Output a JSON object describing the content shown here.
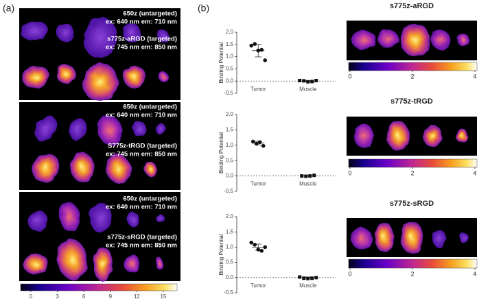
{
  "panel_labels": [
    "(a)",
    "(b)"
  ],
  "image_panels": [
    {
      "labels": [
        "650z (untargeted)",
        "ex: 640 nm  em: 710 nm",
        "s775z-aRGD (targeted)",
        "ex: 745 nm  em: 850 nm"
      ]
    },
    {
      "labels": [
        "650z (untargeted)",
        "ex: 640 nm  em: 710 nm",
        "S775z-tRGD (targeted)",
        "ex: 745 nm  em: 850 nm"
      ]
    },
    {
      "labels": [
        "650z (untargeted)",
        "ex: 640 nm  em: 710 nm",
        "s775z-sRGD (targeted)",
        "ex: 745 nm  em: 850 nm"
      ]
    }
  ],
  "colorbar": {
    "lim": [
      0,
      15
    ],
    "ticks": [
      0,
      3,
      6,
      9,
      12,
      15
    ]
  },
  "chart_data": [
    {
      "type": "dot",
      "title": "s775z-aRGD",
      "ylabel": "Binding Potential",
      "categories": [
        "Tumor",
        "Muscle"
      ],
      "markers": [
        "circle",
        "square"
      ],
      "color": "#111111",
      "points": [
        [
          1.45,
          1.52,
          1.25,
          1.28,
          0.85
        ],
        [
          0.02,
          0.01,
          -0.03,
          -0.02,
          0.02
        ]
      ],
      "mean": [
        1.25,
        0.0
      ],
      "sd": [
        0.26,
        0.02
      ],
      "ylim": [
        -0.5,
        2.0
      ],
      "yticks": [
        {
          "value": -0.5,
          "label": "-0.5"
        },
        {
          "value": 0,
          "label": "0.0"
        },
        {
          "value": 0.5,
          "label": "0.5"
        },
        {
          "value": 1,
          "label": "1.0"
        },
        {
          "value": 1.5,
          "label": "1.5"
        },
        {
          "value": 2,
          "label": "2.0"
        }
      ],
      "colorbar": {
        "lim": [
          0,
          4
        ],
        "ticks": [
          0,
          2,
          4
        ]
      }
    },
    {
      "type": "dot",
      "title": "s775z-tRGD",
      "ylabel": "Binding Potential",
      "categories": [
        "Tumor",
        "Muscle"
      ],
      "markers": [
        "circle",
        "square"
      ],
      "color": "#111111",
      "points": [
        [
          1.12,
          1.05,
          1.1,
          0.98
        ],
        [
          0.0,
          -0.01,
          0.0,
          0.02
        ]
      ],
      "mean": [
        1.07,
        0.0
      ],
      "sd": [
        0.06,
        0.01
      ],
      "ylim": [
        -0.5,
        2.0
      ],
      "yticks": [
        {
          "value": -0.5,
          "label": "-0.5"
        },
        {
          "value": 0,
          "label": "0.0"
        },
        {
          "value": 0.5,
          "label": "0.5"
        },
        {
          "value": 1,
          "label": "1.0"
        },
        {
          "value": 1.5,
          "label": "1.5"
        },
        {
          "value": 2,
          "label": "2.0"
        }
      ],
      "colorbar": {
        "lim": [
          0,
          4
        ],
        "ticks": [
          0,
          2,
          4
        ]
      }
    },
    {
      "type": "dot",
      "title": "s775z-sRGD",
      "ylabel": "Binding Potential",
      "categories": [
        "Tumor",
        "Muscle"
      ],
      "markers": [
        "circle",
        "square"
      ],
      "color": "#111111",
      "points": [
        [
          1.15,
          1.08,
          0.92,
          0.88,
          1.0
        ],
        [
          0.02,
          -0.02,
          -0.03,
          -0.02,
          0.0
        ]
      ],
      "mean": [
        1.0,
        0.0
      ],
      "sd": [
        0.1,
        0.02
      ],
      "ylim": [
        -0.5,
        2.0
      ],
      "yticks": [
        {
          "value": -0.5,
          "label": "-0.5"
        },
        {
          "value": 0,
          "label": "0.0"
        },
        {
          "value": 0.5,
          "label": "0.5"
        },
        {
          "value": 1,
          "label": "1.0"
        },
        {
          "value": 1.5,
          "label": "1.5"
        },
        {
          "value": 2,
          "label": "2.0"
        }
      ],
      "colorbar": {
        "lim": [
          0,
          4
        ],
        "ticks": [
          0,
          2,
          4
        ]
      }
    }
  ]
}
